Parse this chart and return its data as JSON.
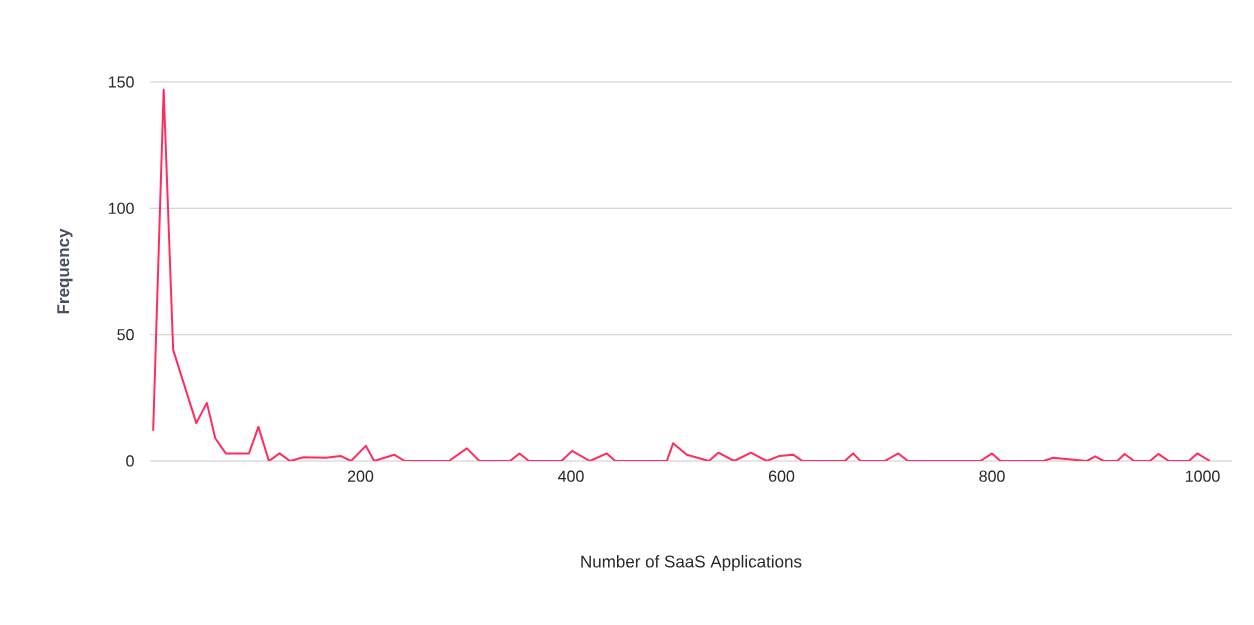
{
  "chart_data": {
    "type": "line",
    "xlabel": "Number of SaaS Applications",
    "ylabel": "Frequency",
    "x": [
      3,
      13,
      22,
      44,
      54,
      62,
      72,
      94,
      103,
      113,
      123,
      133,
      146,
      167,
      181,
      191,
      205,
      213,
      232,
      242,
      280,
      284,
      301,
      313,
      342,
      351,
      360,
      391,
      401,
      418,
      434,
      442,
      491,
      497,
      510,
      531,
      540,
      555,
      571,
      586,
      598,
      611,
      620,
      660,
      668,
      675,
      698,
      711,
      720,
      789,
      800,
      808,
      849,
      858,
      890,
      898,
      906,
      919,
      926,
      935,
      950,
      958,
      968,
      987,
      995,
      1007
    ],
    "series": [
      {
        "color": "#ff2d5f",
        "values": [
          12,
          147,
          44,
          15,
          23,
          9,
          3,
          3,
          13.5,
          0,
          3,
          0,
          1.5,
          1.3,
          2,
          0,
          6,
          0,
          2.5,
          0,
          0,
          0,
          5,
          0,
          0,
          3,
          0,
          0,
          4,
          0,
          3,
          0,
          0,
          7,
          2.5,
          0,
          3.3,
          0,
          3.3,
          0,
          2,
          2.5,
          0,
          0,
          3,
          0,
          0,
          3,
          0,
          0,
          3,
          0,
          0,
          1.3,
          0,
          1.8,
          0,
          0,
          2.8,
          0,
          0,
          2.8,
          0,
          0,
          3,
          0
        ]
      }
    ],
    "xlim": [
      0,
      1028
    ],
    "ylim": [
      0,
      150
    ],
    "xticks": [
      200,
      400,
      600,
      800,
      1000
    ],
    "yticks": [
      0,
      50,
      100,
      150
    ],
    "grid": "y",
    "legend": false,
    "marker": "none",
    "line_style": "solid"
  }
}
